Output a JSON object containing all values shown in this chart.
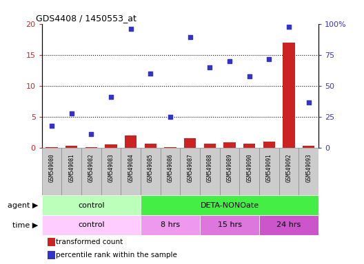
{
  "title": "GDS4408 / 1450553_at",
  "samples": [
    "GSM549080",
    "GSM549081",
    "GSM549082",
    "GSM549083",
    "GSM549084",
    "GSM549085",
    "GSM549086",
    "GSM549087",
    "GSM549088",
    "GSM549089",
    "GSM549090",
    "GSM549091",
    "GSM549092",
    "GSM549093"
  ],
  "transformed_count": [
    0.12,
    0.38,
    0.08,
    0.55,
    2.0,
    0.62,
    0.08,
    1.55,
    0.65,
    0.85,
    0.65,
    1.05,
    17.0,
    0.35
  ],
  "percentile_rank": [
    17.5,
    28.0,
    11.0,
    41.0,
    96.0,
    60.0,
    25.0,
    89.0,
    65.0,
    70.0,
    57.5,
    71.5,
    97.5,
    36.5
  ],
  "ylim_left": [
    0,
    20
  ],
  "ylim_right": [
    0,
    100
  ],
  "yticks_left": [
    0,
    5,
    10,
    15,
    20
  ],
  "yticks_right": [
    0,
    25,
    50,
    75,
    100
  ],
  "ytick_labels_right": [
    "0",
    "25",
    "50",
    "75",
    "100%"
  ],
  "bar_color": "#cc2222",
  "scatter_color": "#3333cc",
  "agent_groups": [
    {
      "label": "control",
      "start": 0,
      "end": 5,
      "color": "#bbffbb"
    },
    {
      "label": "DETA-NONOate",
      "start": 5,
      "end": 14,
      "color": "#44ee44"
    }
  ],
  "time_groups": [
    {
      "label": "control",
      "start": 0,
      "end": 5,
      "color": "#ffccff"
    },
    {
      "label": "8 hrs",
      "start": 5,
      "end": 8,
      "color": "#ee99ee"
    },
    {
      "label": "15 hrs",
      "start": 8,
      "end": 11,
      "color": "#dd77dd"
    },
    {
      "label": "24 hrs",
      "start": 11,
      "end": 14,
      "color": "#cc55cc"
    }
  ],
  "legend_bar_label": "transformed count",
  "legend_scatter_label": "percentile rank within the sample",
  "agent_label": "agent",
  "time_label": "time",
  "background_color": "#ffffff",
  "left_tick_color": "#cc2222",
  "right_tick_color": "#3333cc",
  "grid_dotted_at": [
    5,
    10,
    15
  ],
  "cell_bg": "#cccccc",
  "cell_edge": "#888888"
}
